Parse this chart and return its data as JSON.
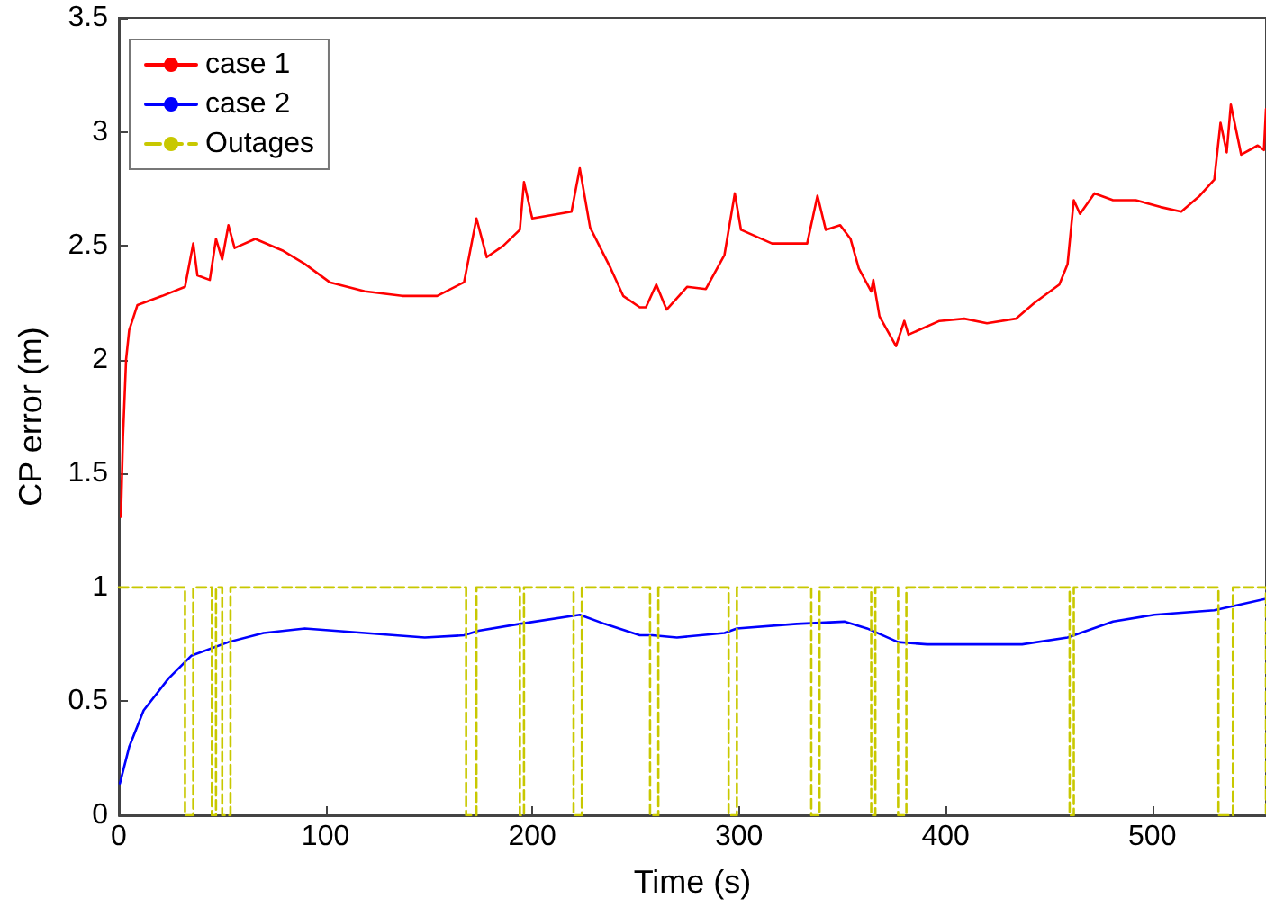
{
  "chart_data": {
    "type": "line",
    "xlabel": "Time (s)",
    "ylabel": "CP error (m)",
    "xlim": [
      0,
      555
    ],
    "xticks": [
      0,
      100,
      200,
      300,
      400,
      500
    ],
    "ylim": [
      0,
      3.5
    ],
    "yticks": [
      0,
      0.5,
      1,
      1.5,
      2,
      2.5,
      3,
      3.5
    ],
    "grid": false,
    "legend": "top left",
    "marker": "none",
    "series": [
      {
        "name": "case 1",
        "color": "#ff0000",
        "line_style": "solid",
        "x": [
          1,
          2,
          3.5,
          5,
          9,
          21,
          32,
          36,
          38,
          44,
          47,
          50,
          53,
          56,
          66,
          79,
          90,
          102,
          119,
          137,
          154,
          167,
          173,
          178,
          186,
          194,
          196,
          200,
          219,
          223,
          228,
          238,
          244,
          252,
          255,
          260,
          265,
          275,
          284,
          293,
          298,
          301,
          316,
          333,
          338,
          342,
          349,
          354,
          358,
          364,
          365,
          368,
          376,
          380,
          382,
          397,
          409,
          420,
          434,
          443,
          455,
          459,
          462,
          465,
          472,
          481,
          492,
          504,
          514,
          523,
          530,
          533,
          536,
          538,
          543,
          551,
          554,
          555
        ],
        "values": [
          1.31,
          1.66,
          2.0,
          2.13,
          2.24,
          2.28,
          2.32,
          2.51,
          2.37,
          2.35,
          2.53,
          2.44,
          2.59,
          2.49,
          2.53,
          2.48,
          2.42,
          2.34,
          2.3,
          2.28,
          2.28,
          2.34,
          2.62,
          2.45,
          2.5,
          2.57,
          2.78,
          2.62,
          2.65,
          2.84,
          2.58,
          2.4,
          2.28,
          2.23,
          2.23,
          2.33,
          2.22,
          2.32,
          2.31,
          2.46,
          2.73,
          2.57,
          2.51,
          2.51,
          2.72,
          2.57,
          2.59,
          2.53,
          2.4,
          2.3,
          2.35,
          2.19,
          2.06,
          2.17,
          2.11,
          2.17,
          2.18,
          2.16,
          2.18,
          2.25,
          2.33,
          2.42,
          2.7,
          2.64,
          2.73,
          2.7,
          2.7,
          2.67,
          2.65,
          2.72,
          2.79,
          3.04,
          2.91,
          3.12,
          2.9,
          2.94,
          2.92,
          3.1
        ]
      },
      {
        "name": "case 2",
        "color": "#0000ff",
        "line_style": "solid",
        "x": [
          0.5,
          5,
          12,
          24,
          35,
          53,
          70,
          90,
          119,
          148,
          167,
          174,
          194,
          223,
          235,
          252,
          258,
          270,
          293,
          299,
          328,
          351,
          362,
          377,
          391,
          437,
          459,
          481,
          501,
          530,
          555
        ],
        "values": [
          0.14,
          0.3,
          0.46,
          0.6,
          0.7,
          0.76,
          0.8,
          0.82,
          0.8,
          0.78,
          0.79,
          0.81,
          0.84,
          0.88,
          0.84,
          0.79,
          0.79,
          0.78,
          0.8,
          0.82,
          0.84,
          0.85,
          0.82,
          0.76,
          0.75,
          0.75,
          0.78,
          0.85,
          0.88,
          0.9,
          0.95
        ]
      },
      {
        "name": "Outages",
        "color": "#c8c800",
        "line_style": "dashed",
        "x": [
          0,
          32,
          32,
          36,
          36,
          45,
          45,
          47,
          47,
          50,
          50,
          54,
          54,
          168,
          168,
          173,
          173,
          194,
          194,
          196,
          196,
          220,
          220,
          224,
          224,
          257,
          257,
          261,
          261,
          295,
          295,
          299,
          299,
          335,
          335,
          339,
          339,
          364,
          364,
          366,
          366,
          377,
          377,
          381,
          381,
          460,
          460,
          462,
          462,
          532,
          532,
          539,
          539,
          555,
          555
        ],
        "values": [
          1,
          1,
          0,
          0,
          1,
          1,
          0,
          0,
          1,
          1,
          0,
          0,
          1,
          1,
          0,
          0,
          1,
          1,
          0,
          0,
          1,
          1,
          0,
          0,
          1,
          1,
          0,
          0,
          1,
          1,
          0,
          0,
          1,
          1,
          0,
          0,
          1,
          1,
          0,
          0,
          1,
          1,
          0,
          0,
          1,
          1,
          0,
          0,
          1,
          1,
          0,
          0,
          1,
          1,
          0
        ]
      }
    ]
  }
}
